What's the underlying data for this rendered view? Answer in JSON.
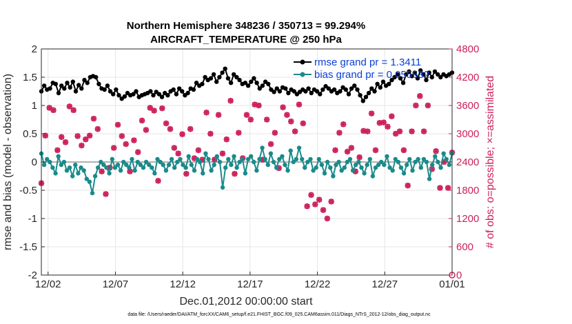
{
  "chart_data": {
    "type": "line",
    "title_line1": "Northern Hemisphere 348236 / 350713 = 99.294%",
    "title_line2": "AIRCRAFT_TEMPERATURE @ 250 hPa",
    "xlabel": "Dec.01,2012 00:00:00 start",
    "ylabel_left": "rmse and bias (model - observation)",
    "ylabel_right": "# of obs: o=possible; ×=assimilated",
    "ylim_left": [
      -2,
      2
    ],
    "ylim_right": [
      0,
      4800
    ],
    "xlim_days": [
      0.5,
      31.0
    ],
    "yticks_left": [
      "-2",
      "-1.5",
      "-1",
      "-0.5",
      "0",
      "0.5",
      "1",
      "1.5",
      "2"
    ],
    "yticks_right": [
      "0",
      "600",
      "1200",
      "1800",
      "2400",
      "3000",
      "3600",
      "4200",
      "4800"
    ],
    "xticks": [
      {
        "day": 1,
        "label": "12/02"
      },
      {
        "day": 6,
        "label": "12/07"
      },
      {
        "day": 11,
        "label": "12/12"
      },
      {
        "day": 16,
        "label": "12/17"
      },
      {
        "day": 21,
        "label": "12/22"
      },
      {
        "day": 26,
        "label": "12/27"
      },
      {
        "day": 31,
        "label": "01/01"
      }
    ],
    "grid": true,
    "legend_position": "top-right",
    "series": [
      {
        "name": "rmse grand pr = 1.3411",
        "color": "#000000",
        "axis": "left",
        "values": [
          1.25,
          1.35,
          1.28,
          1.3,
          1.4,
          1.38,
          1.22,
          1.35,
          1.3,
          1.4,
          1.32,
          1.42,
          1.25,
          1.36,
          1.3,
          1.45,
          1.4,
          1.5,
          1.52,
          1.5,
          1.38,
          1.3,
          1.28,
          1.35,
          1.25,
          1.2,
          1.28,
          1.18,
          1.12,
          1.16,
          1.22,
          1.18,
          1.2,
          1.25,
          1.15,
          1.18,
          1.2,
          1.22,
          1.25,
          1.18,
          1.24,
          1.2,
          1.15,
          1.22,
          1.18,
          1.25,
          1.28,
          1.2,
          1.3,
          1.25,
          1.18,
          1.22,
          1.3,
          1.28,
          1.4,
          1.35,
          1.38,
          1.5,
          1.45,
          1.48,
          1.55,
          1.42,
          1.5,
          1.58,
          1.65,
          1.48,
          1.4,
          1.55,
          1.5,
          1.45,
          1.38,
          1.4,
          1.35,
          1.42,
          1.48,
          1.4,
          1.3,
          1.35,
          1.42,
          1.38,
          1.28,
          1.24,
          1.3,
          1.25,
          1.32,
          1.3,
          1.22,
          1.28,
          1.25,
          1.2,
          1.24,
          1.28,
          1.25,
          1.3,
          1.22,
          1.28,
          1.25,
          1.2,
          1.28,
          1.34,
          1.3,
          1.25,
          1.28,
          1.22,
          1.25,
          1.32,
          1.28,
          1.2,
          1.3,
          1.35,
          1.28,
          1.18,
          1.08,
          1.15,
          1.22,
          1.3,
          1.25,
          1.38,
          1.32,
          1.42,
          1.35,
          1.38,
          1.45,
          1.5,
          1.55,
          1.48,
          1.4,
          1.55,
          1.6,
          1.52,
          1.58,
          1.48,
          1.62,
          1.55,
          1.45,
          1.58,
          1.5,
          1.6,
          1.55,
          1.5,
          1.55,
          1.52,
          1.55,
          1.58
        ]
      },
      {
        "name": "bias grand pr = 0.055532",
        "color": "#1a8a8a",
        "axis": "left",
        "values": [
          0.15,
          -0.05,
          0.05,
          0.0,
          -0.1,
          -0.2,
          0.1,
          -0.05,
          0.0,
          -0.15,
          -0.1,
          -0.25,
          -0.05,
          -0.2,
          -0.1,
          -0.15,
          -0.3,
          -0.35,
          -0.55,
          -0.25,
          -0.1,
          0.0,
          -0.05,
          -0.1,
          -0.2,
          0.05,
          -0.1,
          -0.05,
          -0.15,
          0.0,
          -0.05,
          -0.1,
          0.05,
          -0.15,
          0.0,
          -0.05,
          -0.1,
          0.0,
          -0.05,
          -0.1,
          -0.2,
          0.05,
          0.0,
          -0.05,
          -0.15,
          -0.05,
          0.05,
          -0.1,
          0.0,
          0.05,
          -0.05,
          -0.1,
          0.1,
          -0.05,
          -0.15,
          0.05,
          0.0,
          -0.2,
          0.15,
          0.05,
          -0.15,
          -0.05,
          0.1,
          0.0,
          -0.45,
          -0.1,
          0.05,
          -0.05,
          0.1,
          -0.1,
          0.0,
          0.05,
          -0.2,
          0.05,
          0.1,
          0.0,
          -0.15,
          0.05,
          0.25,
          0.05,
          -0.05,
          0.15,
          0.0,
          -0.1,
          0.05,
          0.1,
          -0.05,
          -0.15,
          0.2,
          0.0,
          0.05,
          0.25,
          0.05,
          -0.1,
          0.0,
          0.05,
          -0.15,
          -0.1,
          0.05,
          -0.05,
          -0.2,
          0.0,
          -0.1,
          -0.25,
          -0.05,
          0.0,
          -0.15,
          -0.1,
          0.0,
          0.05,
          -0.15,
          -0.05,
          0.0,
          -0.1,
          -0.2,
          -0.05,
          0.05,
          -0.25,
          -0.1,
          -0.05,
          0.0,
          -0.05,
          0.1,
          -0.1,
          -0.15,
          0.05,
          0.0,
          -0.1,
          -0.2,
          -0.05,
          0.05,
          -0.15,
          0.0,
          0.05,
          -0.1,
          0.05,
          0.0,
          -0.3,
          -0.05,
          0.1,
          0.0,
          -0.1,
          0.15,
          0.05,
          -0.05,
          0.15
        ]
      },
      {
        "name": "obs possible",
        "color": "#cc1f5a",
        "axis": "right",
        "marker": "o",
        "values": [
          1950,
          2960,
          3550,
          3500,
          2650,
          2930,
          2820,
          3580,
          3500,
          2950,
          2750,
          2880,
          2960,
          3320,
          3100,
          2200,
          1720,
          2280,
          2700,
          3190,
          2950,
          2780,
          2200,
          2860,
          2610,
          3280,
          3080,
          3550,
          3490,
          2000,
          3540,
          3220,
          3100,
          2700,
          2580,
          2990,
          2150,
          3100,
          2480,
          2650,
          2450,
          3450,
          3000,
          2450,
          3400,
          2580,
          2880,
          3700,
          2150,
          3020,
          2480,
          3400,
          3300,
          3620,
          3600,
          2450,
          3300,
          2780,
          3020,
          2270,
          3560,
          3400,
          3260,
          3050,
          3620,
          3220,
          1460,
          1700,
          1500,
          1600,
          1380,
          1200,
          1560,
          2650,
          3020,
          3200,
          2620,
          2700,
          2200,
          2500,
          3060,
          3050,
          3430,
          2650,
          3230,
          3240,
          3150,
          3370,
          3000,
          3050,
          2650,
          1900,
          3050,
          3600,
          3800,
          3050,
          3600,
          2250,
          2630,
          1850,
          2400,
          1850,
          2600
        ]
      },
      {
        "name": "obs assimilated",
        "color": "#cc1f5a",
        "axis": "right",
        "marker": "x",
        "values": [
          1950,
          2960,
          3550,
          3500,
          2650,
          2930,
          2820,
          3580,
          3500,
          2950,
          2750,
          2880,
          2960,
          3320,
          3100,
          2200,
          1720,
          2280,
          2700,
          3190,
          2950,
          2780,
          2200,
          2860,
          2610,
          3280,
          3080,
          3550,
          3490,
          2000,
          3540,
          3220,
          3100,
          2700,
          2580,
          2990,
          2150,
          3100,
          2480,
          2650,
          2450,
          3450,
          3000,
          2450,
          3400,
          2580,
          2880,
          3700,
          2150,
          3020,
          2480,
          3400,
          3300,
          3620,
          3600,
          2450,
          3300,
          2780,
          3020,
          2270,
          3560,
          3400,
          3260,
          3050,
          3620,
          3220,
          1460,
          1700,
          1500,
          1600,
          1380,
          1200,
          1560,
          2650,
          3020,
          3200,
          2620,
          2700,
          2200,
          2500,
          3060,
          3050,
          3430,
          2650,
          3230,
          3240,
          3150,
          3370,
          3000,
          3050,
          2650,
          1900,
          3050,
          3600,
          3800,
          3050,
          3600,
          2250,
          2630,
          1850,
          2400,
          1850,
          2600
        ]
      }
    ],
    "legend_entries": [
      "rmse grand pr = 1.3411",
      "bias grand pr = 0.055532"
    ],
    "footer": "data file: /Users/raeder/DAI/ATM_forcXX/CAM6_setup/f.e21.FHIST_BGC.f09_025.CAM6assim.011/Diags_NTrS_2012-12/obs_diag_output.nc"
  }
}
